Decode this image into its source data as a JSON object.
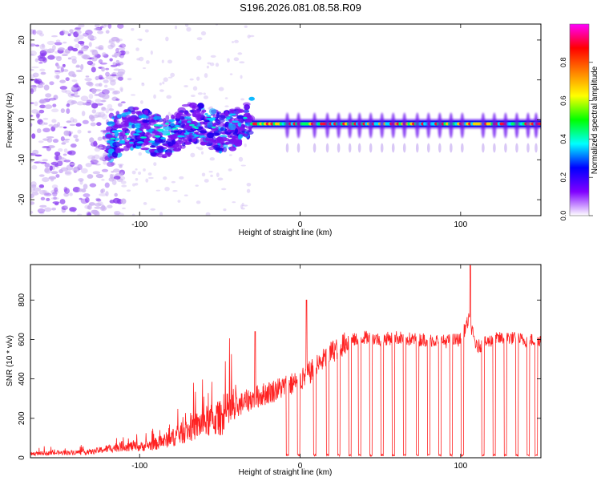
{
  "title": "S196.2026.081.08.58.R09",
  "chart_data": [
    {
      "type": "heatmap",
      "panel": "top",
      "xlabel": "Height of straight line (km)",
      "ylabel": "Frequency (Hz)",
      "xlim": [
        -168,
        150
      ],
      "ylim": [
        -24,
        24
      ],
      "xticks": [
        -100,
        0,
        100
      ],
      "yticks": [
        -20,
        -10,
        0,
        10,
        20
      ],
      "xtick_labels": [
        "-100",
        "0",
        "100"
      ],
      "ytick_labels": [
        "-20",
        "-10",
        "0",
        "10",
        "20"
      ],
      "colorbar": {
        "label": "Normalized spectral amplitude",
        "range": [
          0,
          1
        ],
        "ticks": [
          0.0,
          0.2,
          0.4,
          0.6,
          0.8
        ],
        "tick_labels": [
          "0.0",
          "0.2",
          "0.4",
          "0.6",
          "0.8"
        ],
        "colors": [
          "#ffffff",
          "#8000ff",
          "#0000ff",
          "#00ffff",
          "#00ff00",
          "#ffff00",
          "#ff8000",
          "#ff0000",
          "#ff00ff"
        ]
      },
      "features": {
        "noise_region_x": [
          -168,
          -110
        ],
        "wandering_signal_x": [
          -120,
          -30
        ],
        "wandering_signal_freq_range": [
          -8,
          6
        ],
        "locked_carrier_x": [
          -30,
          150
        ],
        "locked_carrier_freq": -1,
        "peak_amplitude": 1.0
      }
    },
    {
      "type": "line",
      "panel": "bottom",
      "xlabel": "Height of straight line (km)",
      "ylabel": "SNR (10 * v/v)",
      "xlim": [
        -168,
        150
      ],
      "ylim": [
        0,
        980
      ],
      "xticks": [
        -100,
        0,
        100
      ],
      "yticks": [
        0,
        200,
        400,
        600,
        800
      ],
      "xtick_labels": [
        "-100",
        "0",
        "100"
      ],
      "ytick_labels": [
        "0",
        "200",
        "400",
        "600",
        "800"
      ],
      "color": "#ff2222",
      "series": [
        {
          "name": "SNR",
          "x": [
            -168,
            -150,
            -130,
            -120,
            -110,
            -100,
            -90,
            -80,
            -70,
            -60,
            -50,
            -40,
            -30,
            -20,
            -10,
            0,
            10,
            20,
            30,
            40,
            50,
            60,
            70,
            80,
            90,
            100,
            105,
            110,
            120,
            130,
            140,
            150
          ],
          "y": [
            20,
            25,
            30,
            45,
            60,
            55,
            70,
            100,
            140,
            180,
            200,
            260,
            300,
            330,
            360,
            390,
            460,
            540,
            590,
            610,
            600,
            610,
            600,
            600,
            590,
            600,
            700,
            560,
            600,
            610,
            595,
            600
          ]
        }
      ],
      "dropout_x": [
        -8,
        -1,
        9,
        17,
        24,
        31,
        37,
        44,
        51,
        58,
        65,
        73,
        80,
        87,
        94,
        101,
        114,
        121,
        128,
        135,
        142,
        147
      ],
      "spikes": [
        {
          "x": 106,
          "y": 975
        },
        {
          "x": -28,
          "y": 640
        },
        {
          "x": 4,
          "y": 800
        }
      ]
    }
  ]
}
